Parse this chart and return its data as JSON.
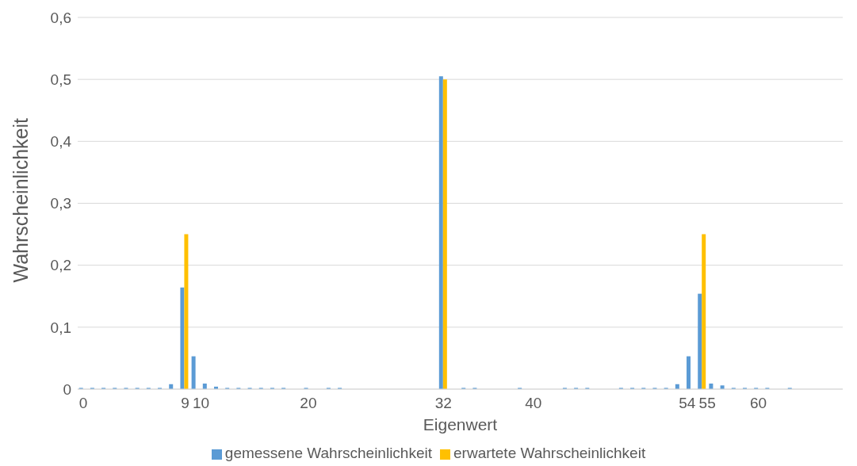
{
  "chart_data": {
    "type": "bar",
    "xlabel": "Eigenwert",
    "ylabel": "Wahrscheinlichkeit",
    "categories": [
      "0",
      null,
      null,
      null,
      null,
      null,
      null,
      null,
      null,
      "9",
      "10",
      null,
      null,
      null,
      null,
      null,
      null,
      null,
      null,
      null,
      "20",
      null,
      null,
      null,
      null,
      null,
      null,
      null,
      null,
      null,
      null,
      null,
      "32",
      null,
      null,
      null,
      null,
      null,
      null,
      null,
      "40",
      null,
      null,
      null,
      null,
      null,
      null,
      null,
      null,
      null,
      null,
      null,
      null,
      null,
      "54",
      "55",
      null,
      null,
      null,
      null,
      "60",
      null,
      null,
      null,
      null,
      null,
      null,
      null
    ],
    "series": [
      {
        "name": "gemessene Wahrscheinlichkeit",
        "color": "#5b9bd5",
        "values": [
          0.002,
          0.002,
          0.002,
          0.002,
          0.002,
          0.002,
          0.002,
          0.002,
          0.008,
          0.164,
          0.053,
          0.009,
          0.004,
          0.002,
          0.002,
          0.002,
          0.002,
          0.002,
          0.002,
          0,
          0.002,
          0,
          0.002,
          0.002,
          0,
          0,
          0,
          0,
          0,
          0,
          0,
          0,
          0.505,
          0,
          0.002,
          0.002,
          0,
          0,
          0,
          0.002,
          0,
          0,
          0,
          0.002,
          0.002,
          0.002,
          0,
          0,
          0.002,
          0.002,
          0.002,
          0.002,
          0.002,
          0.008,
          0.053,
          0.154,
          0.009,
          0.006,
          0.002,
          0.002,
          0.002,
          0.002,
          0,
          0.002,
          0,
          0,
          0,
          0
        ]
      },
      {
        "name": "erwartete Wahrscheinlichkeit",
        "color": "#ffc000",
        "values": [
          0,
          0,
          0,
          0,
          0,
          0,
          0,
          0,
          0,
          0.25,
          0,
          0,
          0,
          0,
          0,
          0,
          0,
          0,
          0,
          0,
          0,
          0,
          0,
          0,
          0,
          0,
          0,
          0,
          0,
          0,
          0,
          0,
          0.5,
          0,
          0,
          0,
          0,
          0,
          0,
          0,
          0,
          0,
          0,
          0,
          0,
          0,
          0,
          0,
          0,
          0,
          0,
          0,
          0,
          0,
          0,
          0.25,
          0,
          0,
          0,
          0,
          0,
          0,
          0,
          0,
          0,
          0,
          0,
          0
        ]
      }
    ],
    "ylim": [
      0,
      0.6
    ],
    "yticks": [
      {
        "value": 0,
        "label": "0"
      },
      {
        "value": 0.1,
        "label": "0,1"
      },
      {
        "value": 0.2,
        "label": "0,2"
      },
      {
        "value": 0.3,
        "label": "0,3"
      },
      {
        "value": 0.4,
        "label": "0,4"
      },
      {
        "value": 0.5,
        "label": "0,5"
      },
      {
        "value": 0.6,
        "label": "0,6"
      }
    ],
    "grid": "y",
    "legend": "bottom"
  }
}
